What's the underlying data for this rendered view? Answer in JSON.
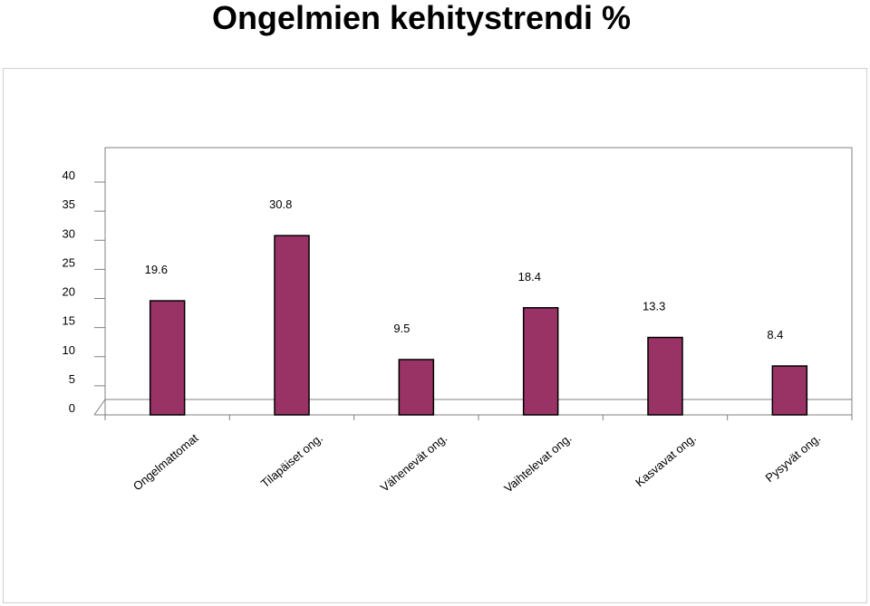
{
  "chart_data": {
    "type": "bar",
    "title": "Ongelmien kehitystrendi %",
    "categories": [
      "Ongelmattomat",
      "Tilapäiset ong.",
      "Vähenevät ong.",
      "Vaihtelevat ong.",
      "Kasvavat ong.",
      "Pysyvät ong."
    ],
    "values": [
      19.6,
      30.8,
      9.5,
      18.4,
      13.3,
      8.4
    ],
    "yticks": [
      "0",
      "5",
      "10",
      "15",
      "20",
      "25",
      "30",
      "35",
      "40"
    ],
    "data_labels": [
      "19.6",
      "30.8",
      "9.5",
      "18.4",
      "13.3",
      "8.4"
    ],
    "xlabel": "",
    "ylabel": "",
    "ylim": [
      0,
      40
    ],
    "grid": false,
    "legend": false,
    "bar_color": "#993366",
    "bar_stroke": "#000000"
  }
}
